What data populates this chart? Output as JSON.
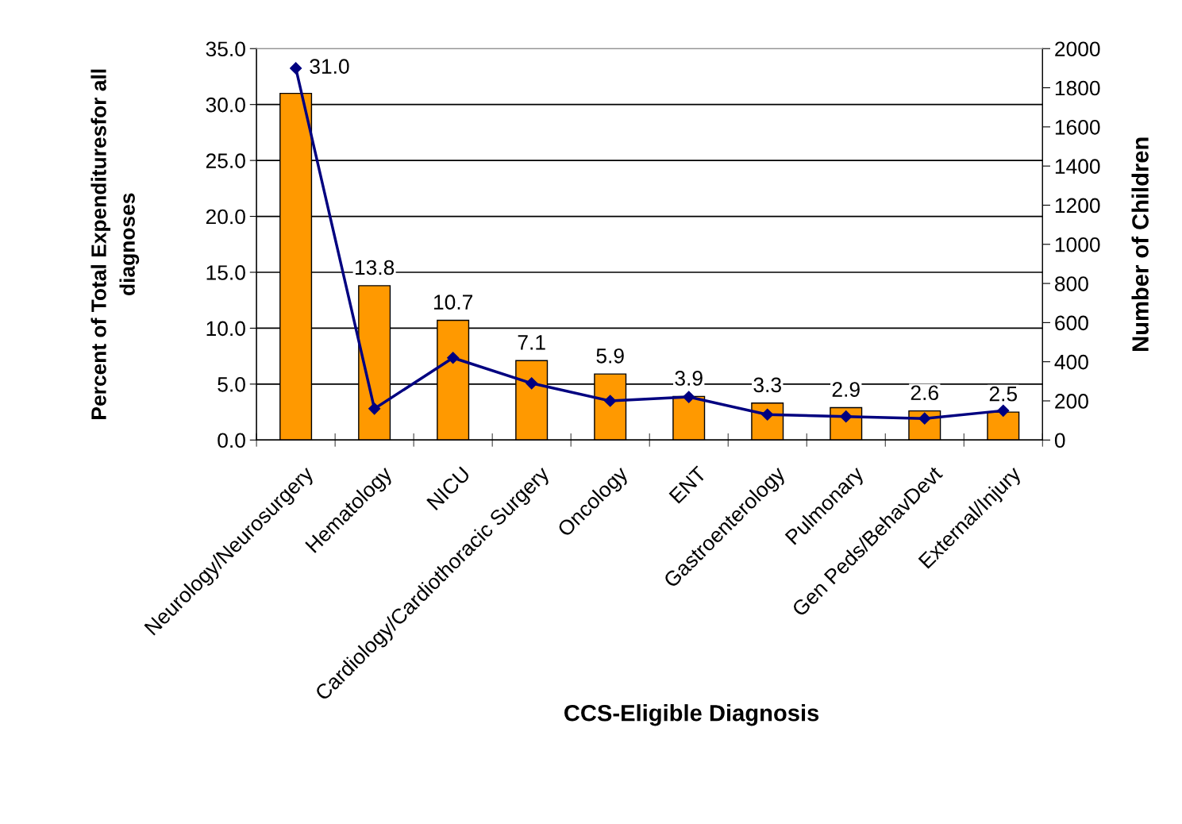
{
  "chart_data": {
    "type": "bar",
    "xlabel": "CCS-Eligible Diagnosis",
    "ylabel": "Percent of Total Expendituresfor all\ndiagnoses",
    "y2label": "Number of Children",
    "categories": [
      "Neurology/Neurosurgery",
      "Hematology",
      "NICU",
      "Cardiology/Cardiothoracic Surgery",
      "Oncology",
      "ENT",
      "Gastroenterology",
      "Pulmonary",
      "Gen Peds/BehavDevt",
      "External/Injury"
    ],
    "series": [
      {
        "type": "bar",
        "color": "#ff9900",
        "values": [
          31.0,
          13.8,
          10.7,
          7.1,
          5.9,
          3.9,
          3.3,
          2.9,
          2.6,
          2.5
        ],
        "value_labels": [
          "31.0",
          "13.8",
          "10.7",
          "7.1",
          "5.9",
          "3.9",
          "3.3",
          "2.9",
          "2.6",
          "2.5"
        ]
      },
      {
        "type": "line",
        "axis": "y2",
        "color": "#000080",
        "marker": "diamond",
        "line_style": "solid",
        "values": [
          1900,
          160,
          420,
          290,
          200,
          220,
          130,
          120,
          110,
          150
        ]
      }
    ],
    "ylim": [
      0,
      35
    ],
    "yticks": [
      {
        "value": 0,
        "label": "0.0"
      },
      {
        "value": 5,
        "label": "5.0"
      },
      {
        "value": 10,
        "label": "10.0"
      },
      {
        "value": 15,
        "label": "15.0"
      },
      {
        "value": 20,
        "label": "20.0"
      },
      {
        "value": 25,
        "label": "25.0"
      },
      {
        "value": 30,
        "label": "30.0"
      },
      {
        "value": 35,
        "label": "35.0"
      }
    ],
    "y2lim": [
      0,
      2000
    ],
    "y2ticks": [
      0,
      200,
      400,
      600,
      800,
      1000,
      1200,
      1400,
      1600,
      1800,
      2000
    ],
    "grid": "y",
    "legend": false
  }
}
